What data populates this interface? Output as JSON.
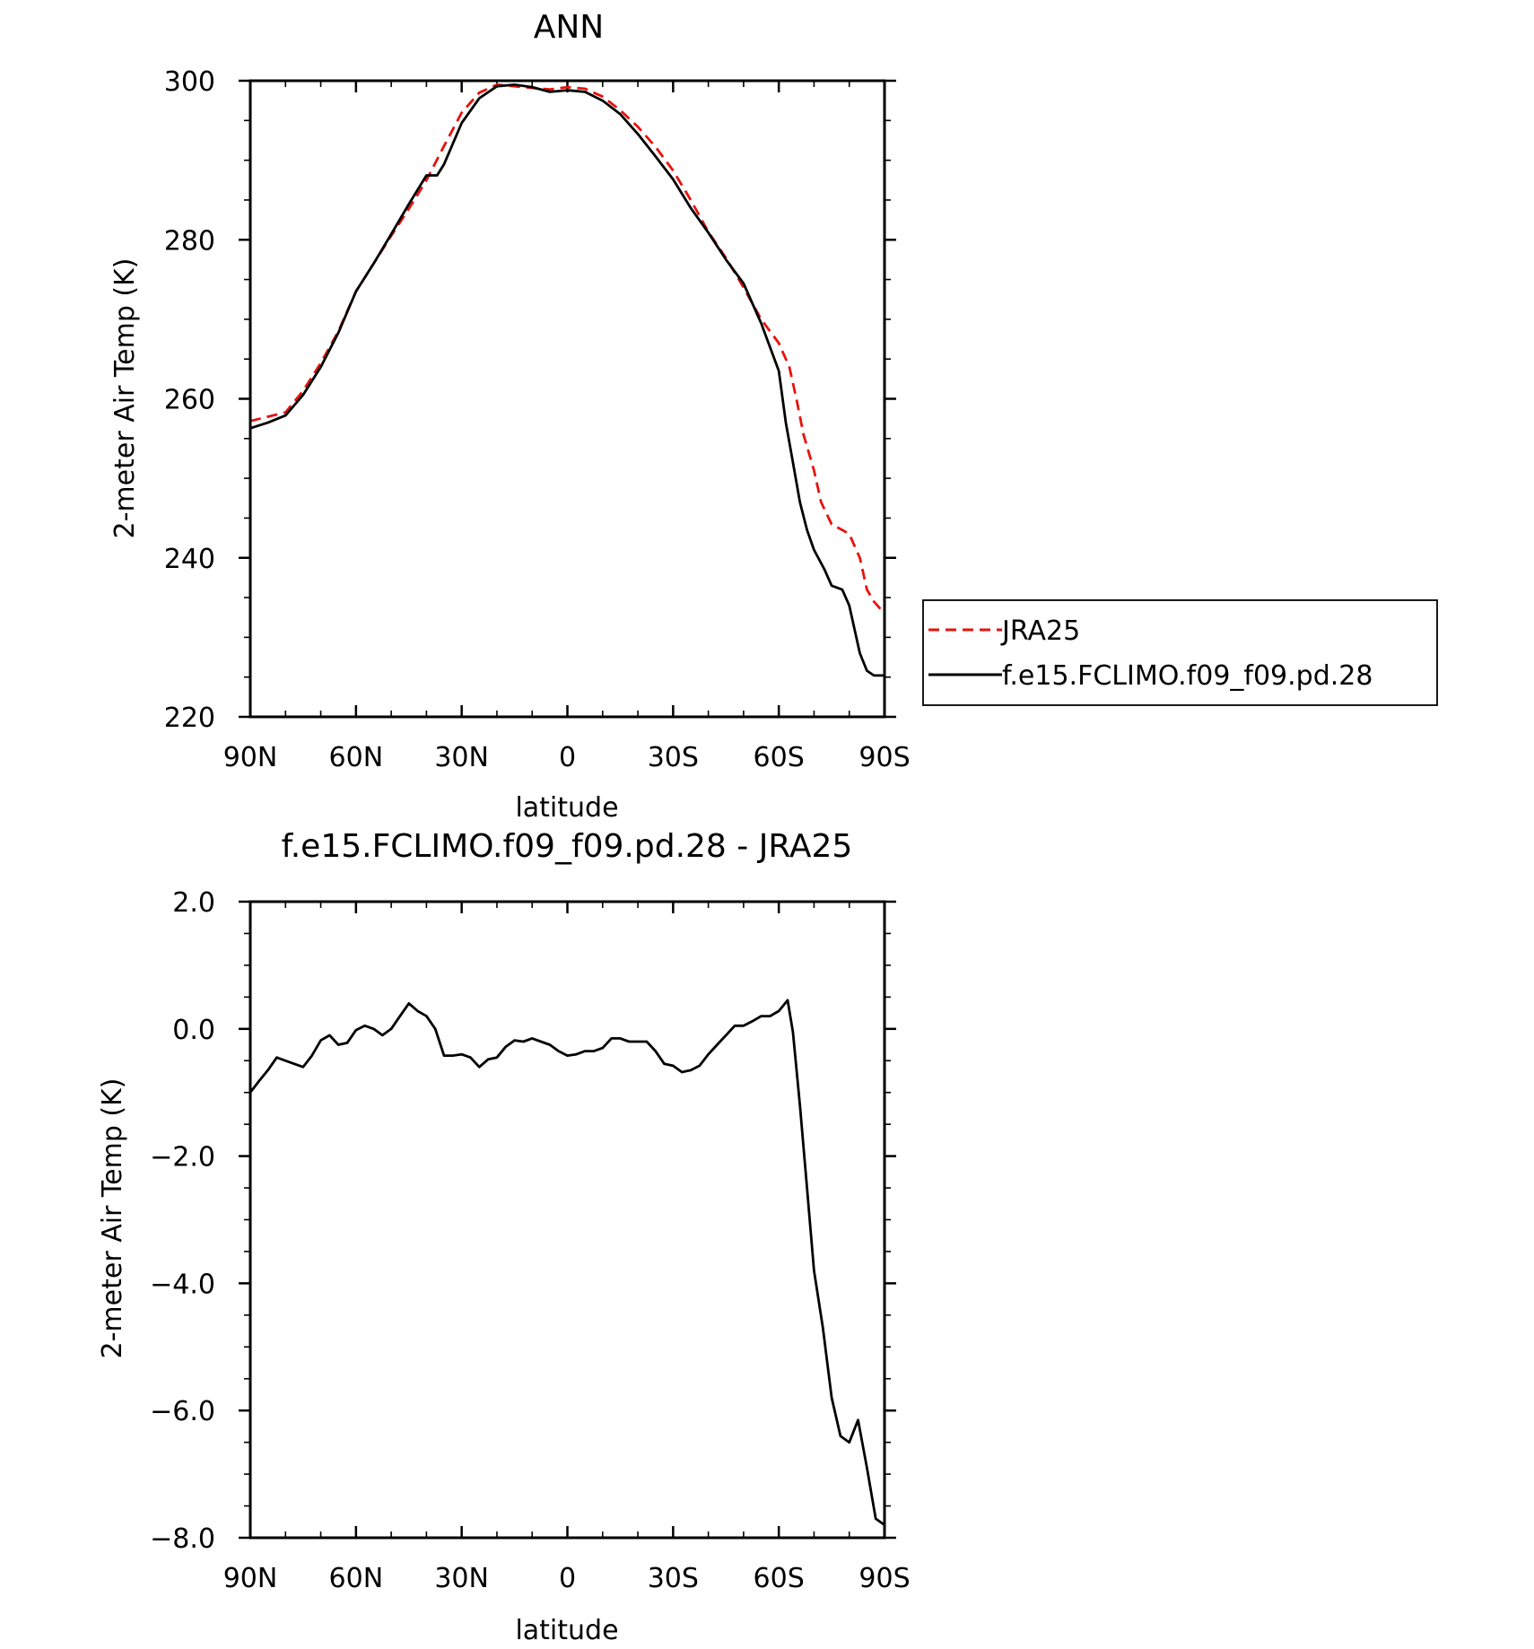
{
  "chart_data": [
    {
      "type": "line",
      "title": "ANN",
      "xlabel": "latitude",
      "ylabel": "2-meter Air Temp (K)",
      "xlim": [
        90,
        -90
      ],
      "ylim": [
        220,
        300
      ],
      "xticks": [
        90,
        60,
        30,
        0,
        -30,
        -60,
        -90
      ],
      "xtick_labels": [
        "90N",
        "60N",
        "30N",
        "0",
        "30S",
        "60S",
        "90S"
      ],
      "yticks": [
        220,
        240,
        260,
        280,
        300
      ],
      "ytick_labels": [
        "220",
        "240",
        "260",
        "280",
        "300"
      ],
      "legend_position": "right",
      "series": [
        {
          "name": "JRA25",
          "color": "#e8120c",
          "dash": "dashed",
          "x": [
            90,
            80,
            75,
            70,
            65,
            60,
            55,
            50,
            45,
            40,
            35,
            30,
            25,
            20,
            15,
            10,
            5,
            0,
            -5,
            -10,
            -15,
            -20,
            -25,
            -30,
            -35,
            -40,
            -45,
            -50,
            -55,
            -60,
            -63,
            -65,
            -67,
            -70,
            -72,
            -75,
            -78,
            -80,
            -83,
            -85,
            -87,
            -90
          ],
          "y": [
            257.2,
            258.3,
            261,
            264.5,
            268.5,
            273.5,
            277,
            280.5,
            283.9,
            287.5,
            291.8,
            296,
            298.5,
            299.5,
            299.3,
            299.1,
            298.9,
            299.2,
            299,
            298,
            296.3,
            294.2,
            291.7,
            288.7,
            285,
            281,
            277.7,
            274,
            270,
            267,
            264,
            260,
            255.5,
            251,
            247,
            244.2,
            243.5,
            243,
            240,
            236,
            234.5,
            233
          ]
        },
        {
          "name": "f.e15.FCLIMO.f09_f09.pd.28",
          "color": "#000000",
          "dash": "solid",
          "x": [
            90,
            85,
            80,
            75,
            70,
            65,
            60,
            55,
            50,
            45,
            40,
            37,
            35,
            30,
            25,
            20,
            15,
            10,
            5,
            0,
            -5,
            -10,
            -15,
            -20,
            -25,
            -30,
            -35,
            -40,
            -45,
            -50,
            -55,
            -60,
            -62,
            -64,
            -66,
            -68,
            -70,
            -73,
            -75,
            -78,
            -80,
            -83,
            -85,
            -87,
            -90
          ],
          "y": [
            256.3,
            257,
            257.9,
            260.5,
            264,
            268.3,
            273.5,
            277,
            280.7,
            284.5,
            288.1,
            288.1,
            289.5,
            294.7,
            297.8,
            299.3,
            299.5,
            299.2,
            298.6,
            298.8,
            298.6,
            297.5,
            295.8,
            293.3,
            290.5,
            287.6,
            284,
            280.9,
            277.5,
            274.5,
            269.5,
            263.5,
            257,
            252,
            247,
            243.5,
            241,
            238.5,
            236.5,
            236,
            234,
            228,
            225.8,
            225.2,
            225.2
          ]
        }
      ]
    },
    {
      "type": "line",
      "title": "f.e15.FCLIMO.f09_f09.pd.28 - JRA25",
      "xlabel": "latitude",
      "ylabel": "2-meter Air Temp (K)",
      "xlim": [
        90,
        -90
      ],
      "ylim": [
        -8.0,
        2.0
      ],
      "xticks": [
        90,
        60,
        30,
        0,
        -30,
        -60,
        -90
      ],
      "xtick_labels": [
        "90N",
        "60N",
        "30N",
        "0",
        "30S",
        "60S",
        "90S"
      ],
      "yticks": [
        -8.0,
        -6.0,
        -4.0,
        -2.0,
        0.0,
        2.0
      ],
      "ytick_labels": [
        "-8.0",
        "-6.0",
        "-4.0",
        "-2.0",
        "0.0",
        "2.0"
      ],
      "series": [
        {
          "name": "",
          "color": "#000000",
          "dash": "solid",
          "x": [
            90,
            87.5,
            85,
            82.5,
            80,
            77.5,
            75,
            72.5,
            70,
            67.5,
            65,
            62.5,
            60,
            57.5,
            55,
            52.5,
            50,
            47.5,
            45,
            42.5,
            40,
            37.5,
            35,
            32.5,
            30,
            27.5,
            25,
            22.5,
            20,
            17.5,
            15,
            12.5,
            10,
            7.5,
            5,
            2.5,
            0,
            -2.5,
            -5,
            -7.5,
            -10,
            -12.5,
            -15,
            -17.5,
            -20,
            -22.5,
            -25,
            -27.5,
            -30,
            -32.5,
            -35,
            -37.5,
            -40,
            -42.5,
            -45,
            -47.5,
            -50,
            -52.5,
            -55,
            -57.5,
            -60,
            -62.5,
            -64,
            -66,
            -68,
            -70,
            -72.5,
            -75,
            -77.5,
            -80,
            -82.5,
            -85,
            -87.5,
            -90
          ],
          "y": [
            -1.0,
            -0.82,
            -0.65,
            -0.45,
            -0.5,
            -0.55,
            -0.6,
            -0.42,
            -0.18,
            -0.1,
            -0.25,
            -0.22,
            -0.02,
            0.05,
            0.0,
            -0.1,
            0.0,
            0.2,
            0.4,
            0.28,
            0.2,
            0.0,
            -0.42,
            -0.42,
            -0.4,
            -0.45,
            -0.6,
            -0.48,
            -0.45,
            -0.28,
            -0.18,
            -0.2,
            -0.15,
            -0.2,
            -0.25,
            -0.35,
            -0.42,
            -0.4,
            -0.35,
            -0.35,
            -0.3,
            -0.15,
            -0.15,
            -0.2,
            -0.2,
            -0.2,
            -0.35,
            -0.55,
            -0.58,
            -0.68,
            -0.65,
            -0.58,
            -0.4,
            -0.25,
            -0.1,
            0.05,
            0.05,
            0.12,
            0.2,
            0.2,
            0.28,
            0.45,
            -0.05,
            -1.2,
            -2.5,
            -3.8,
            -4.7,
            -5.8,
            -6.4,
            -6.5,
            -6.15,
            -6.9,
            -7.7,
            -7.8
          ]
        }
      ]
    }
  ]
}
